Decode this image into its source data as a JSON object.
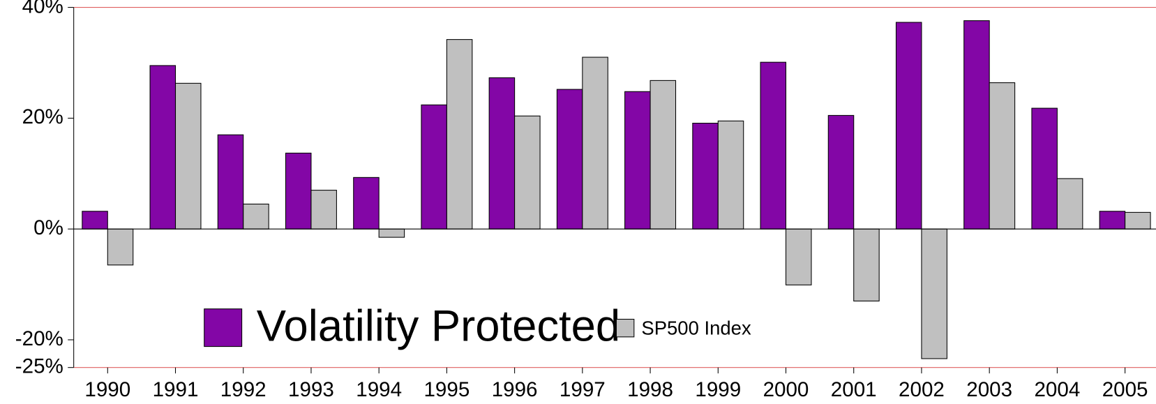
{
  "chart_data": {
    "type": "bar",
    "categories": [
      "1990",
      "1991",
      "1992",
      "1993",
      "1994",
      "1995",
      "1996",
      "1997",
      "1998",
      "1999",
      "2000",
      "2001",
      "2002",
      "2003",
      "2004",
      "2005"
    ],
    "series": [
      {
        "name": "Volatility Protected",
        "color": "#8306a6",
        "values": [
          3.2,
          29.5,
          17,
          13.7,
          9.3,
          22.4,
          27.3,
          25.2,
          24.8,
          19.1,
          30.1,
          20.5,
          37.3,
          37.6,
          21.8,
          3.2
        ]
      },
      {
        "name": "SP500 Index",
        "color": "#c0c0c0",
        "values": [
          -6.5,
          26.3,
          4.5,
          7,
          -1.5,
          34.2,
          20.4,
          31,
          26.8,
          19.5,
          -10.1,
          -13,
          -23.4,
          26.4,
          9.1,
          3
        ]
      }
    ],
    "ylim": [
      -25,
      40
    ],
    "yticks": [
      {
        "value": 40,
        "label": "40%"
      },
      {
        "value": 20,
        "label": "20%"
      },
      {
        "value": 0,
        "label": "0%"
      },
      {
        "value": -20,
        "label": "-20%"
      },
      {
        "value": -25,
        "label": "-25%"
      }
    ]
  }
}
